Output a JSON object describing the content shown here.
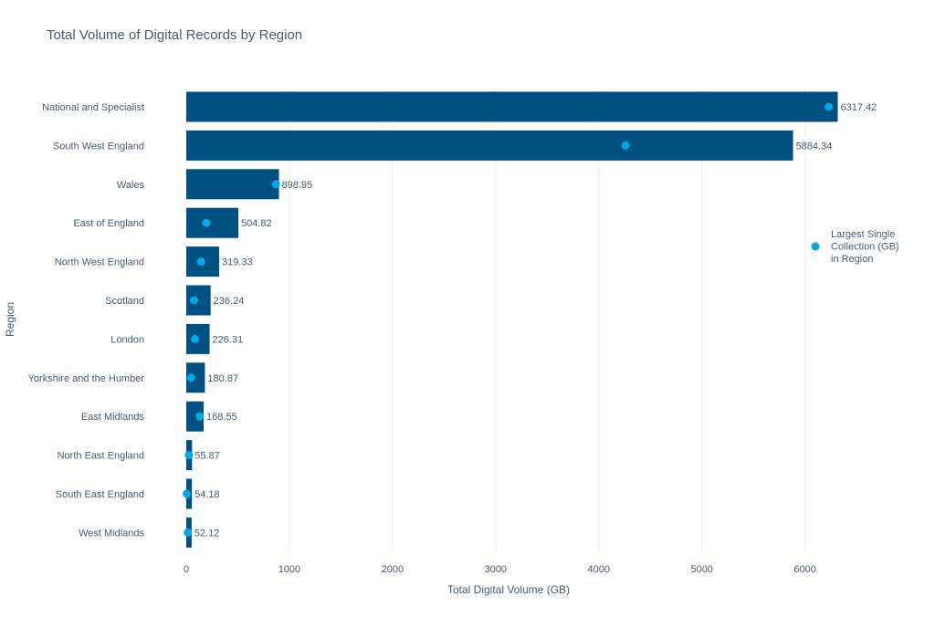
{
  "colors": {
    "bar": "#005082",
    "marker": "#00a8e8",
    "text": "#4a5a6e",
    "title": "#4a5a6e",
    "grid": "#e9edf2",
    "background": "#ffffff"
  },
  "chart_data": {
    "type": "bar",
    "orientation": "horizontal",
    "title": "Total Volume of Digital Records by Region",
    "xlabel": "Total Digital Volume (GB)",
    "ylabel": "Region",
    "xlim": [
      0,
      6500
    ],
    "xticks": [
      0,
      1000,
      2000,
      3000,
      4000,
      5000,
      6000
    ],
    "grid": true,
    "legend_placement": "right",
    "categories": [
      "National and Specialist",
      "South West England",
      "Wales",
      "East of England",
      "North West England",
      "Scotland",
      "London",
      "Yorkshire and the Humber",
      "East Midlands",
      "North East England",
      "South East England",
      "West Midlands"
    ],
    "series": [
      {
        "type": "bar",
        "values": [
          6317.42,
          5884.34,
          898.95,
          504.82,
          319.33,
          236.24,
          226.31,
          180.87,
          168.55,
          55.87,
          54.18,
          52.12
        ],
        "data_labels": [
          "6317.42",
          "5884.34",
          "898.95",
          "504.82",
          "319.33",
          "236.24",
          "226.31",
          "180.87",
          "168.55",
          "55.87",
          "54.18",
          "52.12"
        ]
      },
      {
        "type": "scatter",
        "name": "Largest Single Collection (GB) in Region",
        "legend_lines": [
          "Largest Single",
          "Collection (GB)",
          "in Region"
        ],
        "values": [
          6230,
          4260,
          870,
          195,
          145,
          75,
          85,
          45,
          130,
          25,
          5,
          15
        ]
      }
    ]
  }
}
